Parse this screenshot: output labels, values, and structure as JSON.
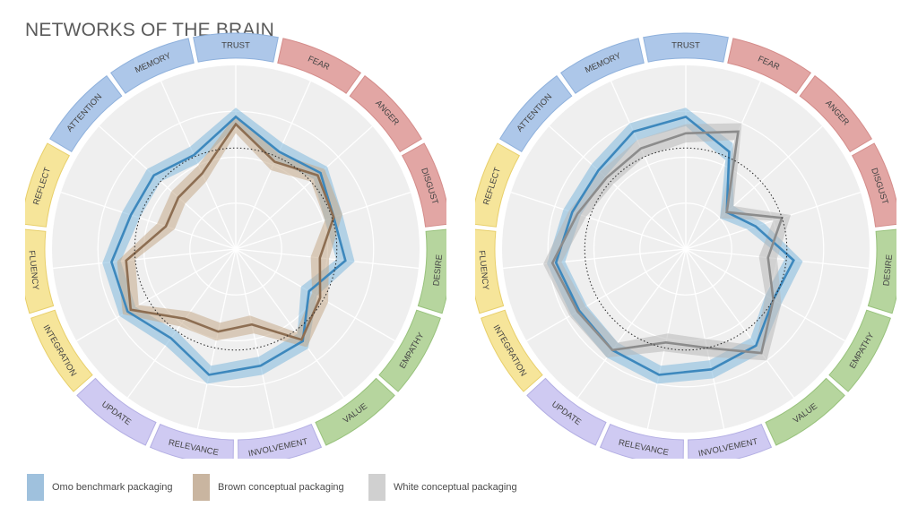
{
  "title": "NETWORKS OF THE BRAIN",
  "colors": {
    "omo": "#3d88bd",
    "omo_band": "#7fb8dc",
    "brown": "#8d6e52",
    "brown_band": "#c5a98a",
    "white": "#8c8c8c",
    "white_band": "#b8b8b8",
    "panel": "#efefef",
    "red_segment": "#e2a6a4",
    "green_segment": "#b6d59e",
    "purple_segment": "#cfcaf2",
    "yellow_segment": "#f6e59a",
    "blue_segment": "#adc7e9"
  },
  "legend": [
    {
      "label": "Omo benchmark packaging",
      "color": "#9fc1dd"
    },
    {
      "label": "Brown conceptual packaging",
      "color": "#c9b5a0"
    },
    {
      "label": "White conceptual packaging",
      "color": "#d0d0d0"
    }
  ],
  "chart_data": [
    {
      "type": "radar",
      "categories": [
        "TRUST",
        "FEAR",
        "ANGER",
        "DISGUST",
        "DESIRE",
        "EMPATHY",
        "VALUE",
        "INVOLVEMENT",
        "RELEVANCE",
        "UPDATE",
        "INTEGRATION",
        "FLUENCY",
        "REFLECT",
        "ATTENTION",
        "MEMORY"
      ],
      "category_groups": [
        "blue",
        "red",
        "red",
        "red",
        "green",
        "green",
        "green",
        "purple",
        "purple",
        "purple",
        "yellow",
        "yellow",
        "yellow",
        "blue",
        "blue"
      ],
      "rlim": [
        0,
        1
      ],
      "reference_circle": 0.55,
      "grid": true,
      "series": [
        {
          "name": "Omo benchmark packaging",
          "color_key": "omo",
          "values": [
            0.72,
            0.58,
            0.62,
            0.56,
            0.6,
            0.46,
            0.62,
            0.65,
            0.7,
            0.6,
            0.68,
            0.68,
            0.6,
            0.6,
            0.56
          ],
          "band": 0.05
        },
        {
          "name": "Brown conceptual packaging",
          "color_key": "brown",
          "values": [
            0.68,
            0.52,
            0.6,
            0.56,
            0.46,
            0.53,
            0.61,
            0.42,
            0.46,
            0.47,
            0.66,
            0.6,
            0.4,
            0.42,
            0.45
          ],
          "band": 0.05
        }
      ]
    },
    {
      "type": "radar",
      "categories": [
        "TRUST",
        "FEAR",
        "ANGER",
        "DISGUST",
        "DESIRE",
        "EMPATHY",
        "VALUE",
        "INVOLVEMENT",
        "RELEVANCE",
        "UPDATE",
        "INTEGRATION",
        "FLUENCY",
        "REFLECT",
        "ATTENTION",
        "MEMORY"
      ],
      "category_groups": [
        "blue",
        "red",
        "red",
        "red",
        "green",
        "green",
        "green",
        "purple",
        "purple",
        "purple",
        "yellow",
        "yellow",
        "yellow",
        "blue",
        "blue"
      ],
      "rlim": [
        0,
        1
      ],
      "reference_circle": 0.55,
      "grid": true,
      "series": [
        {
          "name": "Omo benchmark packaging",
          "color_key": "omo",
          "values": [
            0.72,
            0.58,
            0.3,
            0.4,
            0.59,
            0.55,
            0.65,
            0.67,
            0.7,
            0.68,
            0.67,
            0.71,
            0.65,
            0.64,
            0.7
          ],
          "band": 0.05
        },
        {
          "name": "White conceptual packaging",
          "color_key": "white",
          "values": [
            0.63,
            0.7,
            0.3,
            0.55,
            0.45,
            0.55,
            0.7,
            0.55,
            0.52,
            0.68,
            0.68,
            0.73,
            0.62,
            0.58,
            0.6
          ],
          "band": 0.05
        }
      ]
    }
  ]
}
